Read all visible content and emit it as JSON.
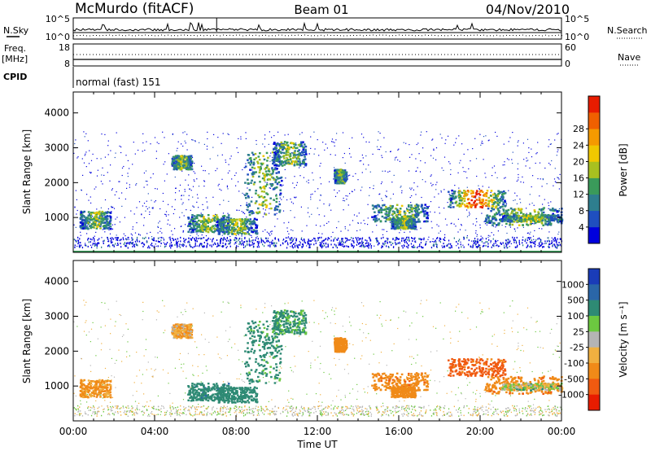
{
  "header": {
    "station": "McMurdo (fitACF)",
    "beam": "Beam 01",
    "date": "04/Nov/2010"
  },
  "noise_panel": {
    "left_label": "N.Sky",
    "right_label": "N.Search",
    "left_ticks": [
      "10^5",
      "10^0"
    ],
    "right_ticks": [
      "10^5",
      "10^0"
    ]
  },
  "freq_panel": {
    "left_label_1": "Freq.",
    "left_label_2": "[MHz]",
    "right_label": "Nave",
    "left_ticks": [
      "18",
      "8"
    ],
    "right_ticks": [
      "60",
      "0"
    ]
  },
  "cpid": {
    "label": "CPID",
    "value": "normal (fast) 151"
  },
  "chart_data": [
    {
      "type": "heatmap",
      "name": "power",
      "ylabel": "Slant Range [km]",
      "ylim": [
        0,
        4600
      ],
      "yticks": [
        "1000",
        "2000",
        "3000",
        "4000"
      ],
      "xlabel": "",
      "colorbar": {
        "label": "Power [dB]",
        "ticks": [
          "4",
          "8",
          "12",
          "16",
          "20",
          "24",
          "28"
        ],
        "colors": [
          "#0000dd",
          "#1f4fbf",
          "#2e7e8e",
          "#3a9a5a",
          "#a8c020",
          "#f0c800",
          "#f59a00",
          "#f06000",
          "#e81c00"
        ]
      }
    },
    {
      "type": "heatmap",
      "name": "velocity",
      "ylabel": "Slant Range [km]",
      "ylim": [
        0,
        4600
      ],
      "yticks": [
        "1000",
        "2000",
        "3000",
        "4000"
      ],
      "xlabel": "Time UT",
      "xticks": [
        "00:00",
        "04:00",
        "08:00",
        "12:00",
        "16:00",
        "20:00",
        "00:00"
      ],
      "colorbar": {
        "label": "Velocity [m s⁻¹]",
        "ticks": [
          "1000",
          "500",
          "100",
          "25",
          "-25",
          "-100",
          "-500",
          "-1000"
        ],
        "colors": [
          "#1a3cb8",
          "#2a66a8",
          "#2e8a74",
          "#6cc840",
          "#b4b4b4",
          "#f0b040",
          "#f08a18",
          "#f05a10",
          "#e81c00"
        ]
      },
      "backscatter_regions": [
        {
          "t": [
            0.3,
            1.8
          ],
          "r": [
            700,
            1200
          ],
          "v": -150
        },
        {
          "t": [
            4.8,
            5.8
          ],
          "r": [
            2400,
            2800
          ],
          "v": -100
        },
        {
          "t": [
            5.6,
            7.6
          ],
          "r": [
            600,
            1100
          ],
          "v": 400
        },
        {
          "t": [
            7.0,
            9.0
          ],
          "r": [
            550,
            1000
          ],
          "v": 350
        },
        {
          "t": [
            8.4,
            10.2
          ],
          "r": [
            1100,
            2900
          ],
          "v": 200
        },
        {
          "t": [
            9.8,
            11.4
          ],
          "r": [
            2500,
            3200
          ],
          "v": 150
        },
        {
          "t": [
            12.8,
            13.4
          ],
          "r": [
            2000,
            2400
          ],
          "v": -300
        },
        {
          "t": [
            14.6,
            17.4
          ],
          "r": [
            900,
            1400
          ],
          "v": -400
        },
        {
          "t": [
            15.6,
            16.8
          ],
          "r": [
            700,
            1000
          ],
          "v": -250
        },
        {
          "t": [
            18.4,
            21.2
          ],
          "r": [
            1300,
            1800
          ],
          "v": -600
        },
        {
          "t": [
            20.2,
            24.0
          ],
          "r": [
            800,
            1300
          ],
          "v": -400
        },
        {
          "t": [
            21.0,
            24.0
          ],
          "r": [
            900,
            1100
          ],
          "v": 0
        }
      ]
    }
  ]
}
